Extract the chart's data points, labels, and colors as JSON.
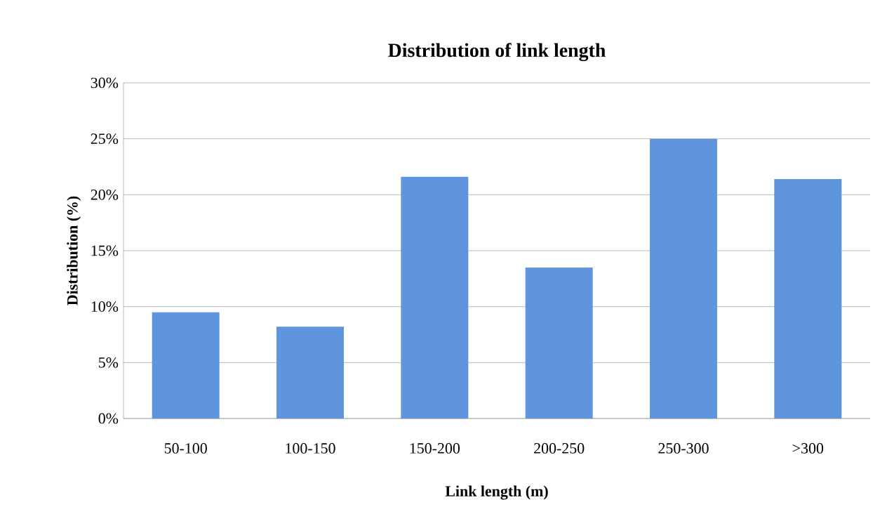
{
  "chart_data": {
    "type": "bar",
    "title": "Distribution of link length",
    "xlabel": "Link length (m)",
    "ylabel": "Distribution (%)",
    "categories": [
      "50-100",
      "100-150",
      "150-200",
      "200-250",
      "250-300",
      ">300"
    ],
    "values": [
      9.5,
      8.2,
      21.6,
      13.5,
      25.0,
      21.4
    ],
    "color": "#5f95dc",
    "ylim": [
      0,
      30
    ],
    "yticks": [
      {
        "value": 0,
        "label": "0%"
      },
      {
        "value": 5,
        "label": "5%"
      },
      {
        "value": 10,
        "label": "10%"
      },
      {
        "value": 15,
        "label": "15%"
      },
      {
        "value": 20,
        "label": "20%"
      },
      {
        "value": 25,
        "label": "25%"
      },
      {
        "value": 30,
        "label": "30%"
      }
    ],
    "grid": "y"
  }
}
